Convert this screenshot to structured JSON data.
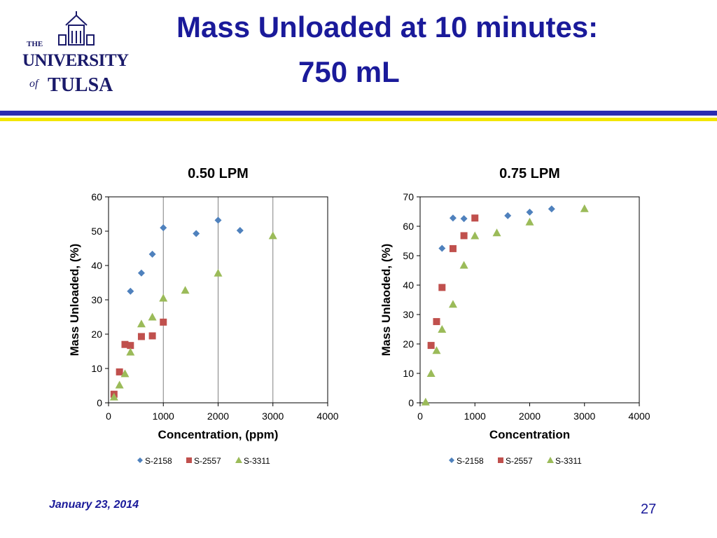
{
  "slide": {
    "title_line1": "Mass Unloaded at 10 minutes:",
    "title_line2": "750 mL",
    "footer_date": "January 23, 2014",
    "page_number": "27",
    "logo": {
      "line1": "THE",
      "line2": "UNIVERSITY",
      "line3": "of",
      "line4": "TULSA"
    }
  },
  "colors": {
    "title": "#1a1a9a",
    "band_blue": "#2b2bb0",
    "band_yellow": "#f2e600",
    "S-2158": "#4f81bd",
    "S-2557": "#c0504d",
    "S-3311": "#9bbb59"
  },
  "chart_data": [
    {
      "type": "scatter",
      "title": "0.50 LPM",
      "xlabel": "Concentration, (ppm)",
      "ylabel": "Mass Unloaded, (%)",
      "xlim": [
        0,
        4000
      ],
      "ylim": [
        0,
        60
      ],
      "xticks": [
        0,
        1000,
        2000,
        3000,
        4000
      ],
      "yticks": [
        0,
        10,
        20,
        30,
        40,
        50,
        60
      ],
      "grid": "vertical",
      "legend": "bottom",
      "series": [
        {
          "name": "S-2158",
          "marker": "diamond",
          "x": [
            400,
            600,
            800,
            1000,
            1600,
            2000,
            2400
          ],
          "y": [
            32.5,
            37.8,
            43.3,
            51.0,
            49.3,
            53.2,
            50.2
          ]
        },
        {
          "name": "S-2557",
          "marker": "square",
          "x": [
            100,
            200,
            300,
            400,
            600,
            800,
            1000
          ],
          "y": [
            2.5,
            9.0,
            17.0,
            16.7,
            19.3,
            19.5,
            23.5
          ]
        },
        {
          "name": "S-3311",
          "marker": "triangle",
          "x": [
            100,
            200,
            300,
            400,
            600,
            800,
            1000,
            1400,
            2000,
            3000
          ],
          "y": [
            1.7,
            5.2,
            8.5,
            14.8,
            23.0,
            25.0,
            30.5,
            32.8,
            37.8,
            48.7
          ]
        }
      ]
    },
    {
      "type": "scatter",
      "title": "0.75 LPM",
      "xlabel": "Concentration",
      "ylabel": "Mass Unlaoded, (%)",
      "xlim": [
        0,
        4000
      ],
      "ylim": [
        0,
        70
      ],
      "xticks": [
        0,
        1000,
        2000,
        3000,
        4000
      ],
      "yticks": [
        0,
        10,
        20,
        30,
        40,
        50,
        60,
        70
      ],
      "grid": "none",
      "legend": "bottom",
      "series": [
        {
          "name": "S-2158",
          "marker": "diamond",
          "x": [
            400,
            600,
            800,
            1600,
            2000,
            2400
          ],
          "y": [
            52.5,
            62.8,
            62.6,
            63.6,
            64.8,
            65.9
          ]
        },
        {
          "name": "S-2557",
          "marker": "square",
          "x": [
            200,
            300,
            400,
            600,
            800,
            1000
          ],
          "y": [
            19.5,
            27.6,
            39.2,
            52.4,
            56.8,
            62.8
          ]
        },
        {
          "name": "S-3311",
          "marker": "triangle",
          "x": [
            100,
            200,
            300,
            400,
            600,
            800,
            1000,
            1400,
            2000,
            3000
          ],
          "y": [
            0.3,
            10.0,
            17.8,
            25.0,
            33.5,
            46.8,
            56.8,
            57.8,
            61.5,
            66.0
          ]
        }
      ]
    }
  ]
}
